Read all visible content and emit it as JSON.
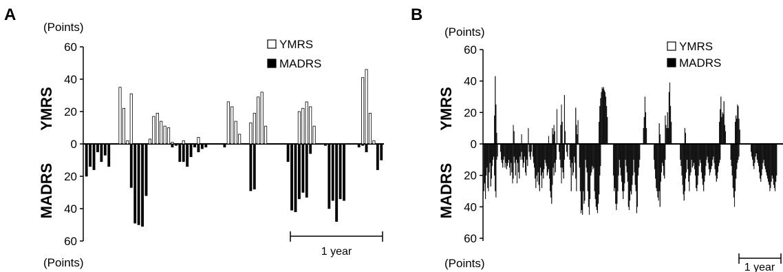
{
  "chart_data": [
    {
      "type": "bar",
      "panel": "A",
      "y_unit_top": "(Points)",
      "y_unit_bottom": "(Points)",
      "ylabel_top": "YMRS",
      "ylabel_bottom": "MADRS",
      "y_ticks_top": [
        "60",
        "40",
        "20",
        "0"
      ],
      "y_ticks_bottom": [
        "20",
        "40",
        "60"
      ],
      "ylim_up": 60,
      "ylim_down": 60,
      "scale_bar_label": "1 year",
      "legend": [
        {
          "label": "YMRS",
          "fill": "#ffffff"
        },
        {
          "label": "MADRS",
          "fill": "#000000"
        }
      ],
      "ymrs": [
        0,
        0,
        0,
        0,
        0,
        0,
        0,
        0,
        0,
        35,
        22,
        2,
        31,
        0,
        0,
        0,
        0,
        3,
        17,
        19,
        14,
        11,
        10,
        1,
        0,
        0,
        2,
        0,
        0,
        0,
        4,
        0,
        0,
        0,
        0,
        0,
        0,
        0,
        26,
        23,
        14,
        6,
        0,
        0,
        13,
        19,
        29,
        32,
        11,
        0,
        0,
        0,
        0,
        0,
        0,
        0,
        0,
        20,
        22,
        26,
        23,
        11,
        0,
        0,
        0,
        0,
        0,
        0,
        0,
        0,
        0,
        0,
        0,
        0,
        41,
        46,
        19,
        2,
        0,
        0
      ],
      "madrs": [
        20,
        14,
        16,
        5,
        11,
        7,
        14,
        0,
        0,
        0,
        0,
        0,
        27,
        49,
        50,
        51,
        32,
        0,
        0,
        0,
        0,
        0,
        0,
        2,
        1,
        11,
        11,
        14,
        8,
        2,
        5,
        3,
        2,
        0,
        0,
        0,
        0,
        2,
        0,
        0,
        0,
        0,
        0,
        0,
        29,
        28,
        0,
        0,
        0,
        0,
        0,
        0,
        0,
        0,
        11,
        41,
        42,
        34,
        30,
        33,
        6,
        0,
        0,
        0,
        1,
        40,
        35,
        48,
        34,
        35,
        0,
        0,
        0,
        2,
        1,
        5,
        0,
        0,
        16,
        10
      ]
    },
    {
      "type": "bar",
      "panel": "B",
      "y_unit_top": "(Points)",
      "y_unit_bottom": "(Points)",
      "ylabel_top": "YMRS",
      "ylabel_bottom": "MADRS",
      "y_ticks_top": [
        "60",
        "40",
        "20",
        "0"
      ],
      "y_ticks_bottom": [
        "20",
        "40",
        "60"
      ],
      "ylim_up": 60,
      "ylim_down": 60,
      "scale_bar_label": "1 year",
      "legend": [
        {
          "label": "YMRS",
          "fill": "#ffffff"
        },
        {
          "label": "MADRS",
          "fill": "#000000"
        }
      ],
      "ymrs": [
        0,
        0,
        0,
        0,
        0,
        0,
        0,
        0,
        0,
        0,
        0,
        0,
        0,
        0,
        18,
        43,
        25,
        7,
        0,
        0,
        0,
        0,
        0,
        0,
        0,
        0,
        0,
        0,
        0,
        0,
        0,
        0,
        0,
        0,
        0,
        0,
        0,
        0,
        0,
        12,
        8,
        0,
        0,
        0,
        0,
        0,
        0,
        0,
        0,
        0,
        6,
        0,
        0,
        0,
        0,
        0,
        0,
        0,
        0,
        10,
        0,
        0,
        0,
        0,
        0,
        0,
        0,
        0,
        0,
        0,
        0,
        0,
        0,
        0,
        0,
        0,
        0,
        0,
        0,
        0,
        0,
        0,
        0,
        0,
        0,
        0,
        5,
        0,
        0,
        0,
        0,
        10,
        6,
        12,
        8,
        0,
        0,
        22,
        0,
        0,
        0,
        0,
        12,
        25,
        14,
        0,
        0,
        31,
        8,
        0,
        0,
        0,
        0,
        0,
        0,
        0,
        0,
        0,
        0,
        0,
        0,
        0,
        23,
        12,
        6,
        15,
        0,
        0,
        0,
        0,
        0,
        0,
        0,
        0,
        0,
        0,
        0,
        0,
        0,
        0,
        0,
        0,
        0,
        0,
        0,
        0,
        0,
        0,
        0,
        0,
        0,
        0,
        0,
        14,
        24,
        29,
        33,
        36,
        35,
        36,
        34,
        33,
        30,
        24,
        17,
        0,
        0,
        0,
        0,
        0,
        0,
        0,
        0,
        0,
        0,
        0,
        0,
        0,
        0,
        0,
        0,
        0,
        0,
        0,
        0,
        0,
        0,
        0,
        0,
        0,
        0,
        0,
        0,
        0,
        0,
        0,
        0,
        0,
        0,
        0,
        0,
        0,
        0,
        0,
        0,
        0,
        0,
        0,
        0,
        0,
        0,
        0,
        10,
        17,
        30,
        20,
        10,
        0,
        0,
        0,
        0,
        0,
        0,
        0,
        0,
        0,
        0,
        0,
        0,
        0,
        0,
        0,
        0,
        13,
        6,
        0,
        0,
        0,
        0,
        0,
        0,
        18,
        12,
        10,
        20,
        10,
        33,
        39,
        24,
        14,
        0,
        0,
        0,
        0,
        0,
        0,
        0,
        0,
        0,
        0,
        0,
        0,
        0,
        0,
        0,
        0,
        0,
        10,
        7,
        0,
        0,
        0,
        0,
        0,
        0,
        0,
        0,
        0,
        0,
        0,
        0,
        0,
        0,
        0,
        0,
        0,
        0,
        0,
        0,
        0,
        0,
        0,
        0,
        0,
        0,
        0,
        0,
        0,
        0,
        0,
        0,
        0,
        0,
        0,
        0,
        0,
        0,
        0,
        0,
        0,
        0,
        0,
        0,
        14,
        22,
        30,
        17,
        20,
        19,
        27,
        12,
        8,
        0,
        0,
        0,
        0,
        0,
        0,
        0,
        0,
        0,
        0,
        0,
        0,
        14,
        18,
        16,
        25,
        24,
        16,
        9,
        0,
        0,
        0,
        0,
        0,
        0,
        0,
        0,
        0,
        0,
        0,
        0,
        0,
        0,
        0,
        0,
        0,
        0,
        0,
        0,
        0,
        0,
        0,
        0,
        0,
        0,
        0,
        0,
        0,
        0,
        0,
        0,
        0,
        0,
        0,
        0,
        0,
        0,
        0,
        0,
        0,
        0,
        0,
        0,
        0,
        0,
        0,
        0,
        0,
        0,
        0,
        0,
        0,
        0,
        0
      ],
      "madrs": [
        30,
        25,
        35,
        20,
        15,
        28,
        30,
        18,
        12,
        27,
        22,
        14,
        10,
        8,
        20,
        30,
        34,
        10,
        8,
        0,
        0,
        0,
        5,
        10,
        12,
        15,
        10,
        8,
        15,
        12,
        16,
        14,
        12,
        10,
        15,
        20,
        12,
        18,
        25,
        22,
        8,
        12,
        20,
        10,
        25,
        12,
        18,
        22,
        8,
        10,
        5,
        10,
        15,
        12,
        8,
        18,
        20,
        10,
        14,
        0,
        5,
        8,
        10,
        5,
        0,
        8,
        12,
        15,
        22,
        28,
        20,
        24,
        18,
        26,
        30,
        15,
        20,
        28,
        18,
        22,
        16,
        10,
        12,
        14,
        20,
        18,
        16,
        22,
        30,
        34,
        38,
        26,
        15,
        20,
        12,
        18,
        10,
        0,
        0,
        0,
        5,
        10,
        15,
        25,
        15,
        18,
        22,
        10,
        0,
        0,
        5,
        8,
        0,
        0,
        10,
        15,
        30,
        12,
        20,
        18,
        8,
        12,
        22,
        30,
        0,
        0,
        0,
        15,
        30,
        44,
        42,
        45,
        30,
        38,
        36,
        10,
        15,
        18,
        30,
        40,
        45,
        35,
        20,
        18,
        14,
        16,
        15,
        30,
        35,
        40,
        42,
        44,
        38,
        32,
        20,
        14,
        0,
        0,
        0,
        0,
        0,
        0,
        0,
        0,
        0,
        0,
        0,
        0,
        0,
        0,
        0,
        0,
        20,
        30,
        28,
        38,
        42,
        38,
        30,
        20,
        10,
        15,
        20,
        24,
        30,
        35,
        30,
        25,
        10,
        14,
        18,
        24,
        40,
        42,
        36,
        30,
        32,
        26,
        20,
        10,
        18,
        26,
        30,
        44,
        40,
        20,
        15,
        10,
        0,
        0,
        0,
        0,
        0,
        0,
        0,
        0,
        0,
        0,
        0,
        0,
        0,
        0,
        0,
        0,
        0,
        0,
        10,
        16,
        22,
        28,
        30,
        34,
        36,
        30,
        40,
        24,
        18,
        12,
        14,
        20,
        22,
        10,
        0,
        0,
        0,
        0,
        0,
        0,
        0,
        0,
        0,
        0,
        0,
        0,
        0,
        0,
        0,
        0,
        0,
        0,
        0,
        10,
        14,
        20,
        26,
        32,
        36,
        30,
        22,
        18,
        10,
        16,
        24,
        30,
        20,
        18,
        10,
        15,
        14,
        12,
        16,
        20,
        28,
        30,
        26,
        20,
        14,
        10,
        12,
        18,
        22,
        26,
        30,
        24,
        20,
        14,
        10,
        8,
        12,
        16,
        20,
        18,
        16,
        14,
        10,
        8,
        12,
        16,
        20,
        24,
        22,
        18,
        14,
        12,
        10,
        0,
        0,
        0,
        0,
        0,
        0,
        0,
        0,
        0,
        0,
        0,
        0,
        0,
        10,
        14,
        20,
        28,
        34,
        40,
        30,
        22,
        16,
        12,
        10,
        8,
        0,
        0,
        0,
        0,
        0,
        0,
        0,
        0,
        0,
        0,
        0,
        0,
        0,
        0,
        0,
        5,
        8,
        10,
        14,
        16,
        12,
        8,
        6,
        10,
        12,
        14,
        18,
        22,
        24,
        20,
        16,
        12,
        10,
        14,
        16,
        18,
        20,
        22,
        24,
        26,
        30,
        28,
        24,
        20,
        22,
        26,
        28,
        30,
        24,
        20
      ]
    }
  ]
}
